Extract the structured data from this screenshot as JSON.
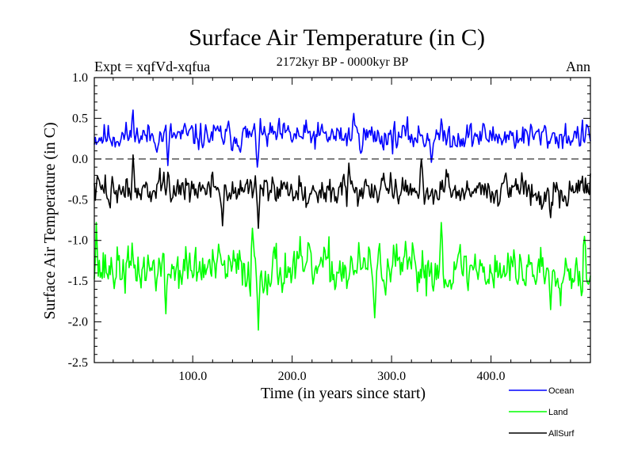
{
  "chart_data": {
    "type": "line",
    "title": "Surface Air Temperature (in C)",
    "subtitle": "2172kyr BP - 0000kyr BP",
    "left_label": "Expt = xqfVd-xqfua",
    "right_label": "Ann",
    "xlabel": "Time (in years since start)",
    "ylabel": "Surface Air Temperature (in C)",
    "xlim": [
      1,
      500
    ],
    "ylim": [
      -2.5,
      1.0
    ],
    "x_ticks": [
      100,
      200,
      300,
      400
    ],
    "x_tick_labels": [
      "100.0",
      "200.0",
      "300.0",
      "400.0"
    ],
    "y_ticks": [
      -2.5,
      -2.0,
      -1.5,
      -1.0,
      -0.5,
      0.0,
      0.5,
      1.0
    ],
    "y_tick_labels": [
      "-2.5",
      "-2.0",
      "-1.5",
      "-1.0",
      "-0.5",
      "0.0",
      "0.5",
      "1.0"
    ],
    "reference_line": 0.0,
    "legend_position": "bottom-right",
    "series": [
      {
        "name": "Ocean",
        "color": "#0000ff",
        "mean": 0.28,
        "amplitude": 0.12,
        "seed": 11,
        "extremes": [
          [
            40,
            0.6
          ],
          [
            165,
            -0.1
          ],
          [
            262,
            0.56
          ],
          [
            75,
            -0.08
          ],
          [
            340,
            -0.04
          ]
        ]
      },
      {
        "name": "Land",
        "color": "#00ff00",
        "mean": -1.35,
        "amplitude": 0.2,
        "seed": 37,
        "extremes": [
          [
            3,
            -0.78
          ],
          [
            73,
            -1.9
          ],
          [
            166,
            -2.1
          ],
          [
            160,
            -0.85
          ],
          [
            283,
            -1.95
          ],
          [
            350,
            -0.78
          ],
          [
            460,
            -1.85
          ],
          [
            494,
            -0.95
          ]
        ]
      },
      {
        "name": "AllSurf",
        "color": "#000000",
        "mean": -0.38,
        "amplitude": 0.13,
        "seed": 73,
        "extremes": [
          [
            40,
            0.05
          ],
          [
            130,
            -0.82
          ],
          [
            166,
            -0.85
          ],
          [
            257,
            -0.05
          ],
          [
            330,
            0.0
          ],
          [
            460,
            -0.72
          ]
        ]
      }
    ]
  }
}
